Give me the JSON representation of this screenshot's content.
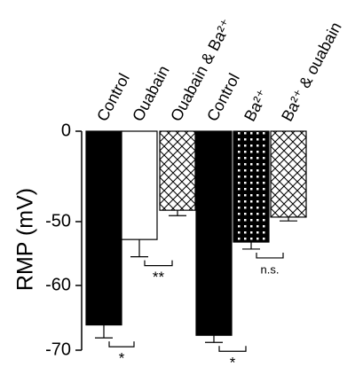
{
  "chart_data": {
    "type": "bar",
    "y_label": "RMP (mV)",
    "categories": [
      "Control",
      "Ouabain",
      "Ouabain & Ba²⁺",
      "Control",
      "Ba²⁺",
      "Ba²⁺ & ouabain"
    ],
    "values": [
      -66.1,
      -52.8,
      -43.7,
      -67.7,
      -53.2,
      -47.5
    ],
    "errors": [
      2.0,
      2.7,
      3.0,
      1.1,
      1.1,
      2.1
    ],
    "fills": [
      "black",
      "white",
      "crosshatch",
      "black",
      "dots",
      "crosshatch"
    ],
    "ylim": [
      0,
      -70
    ],
    "yticks": [
      0,
      -50,
      -60,
      -70
    ],
    "annotations": [
      {
        "text": "*",
        "between": [
          0,
          1
        ]
      },
      {
        "text": "**",
        "between": [
          1,
          2
        ]
      },
      {
        "text": "*",
        "between": [
          3,
          4
        ]
      },
      {
        "text": "n.s.",
        "between": [
          4,
          5
        ]
      }
    ]
  }
}
